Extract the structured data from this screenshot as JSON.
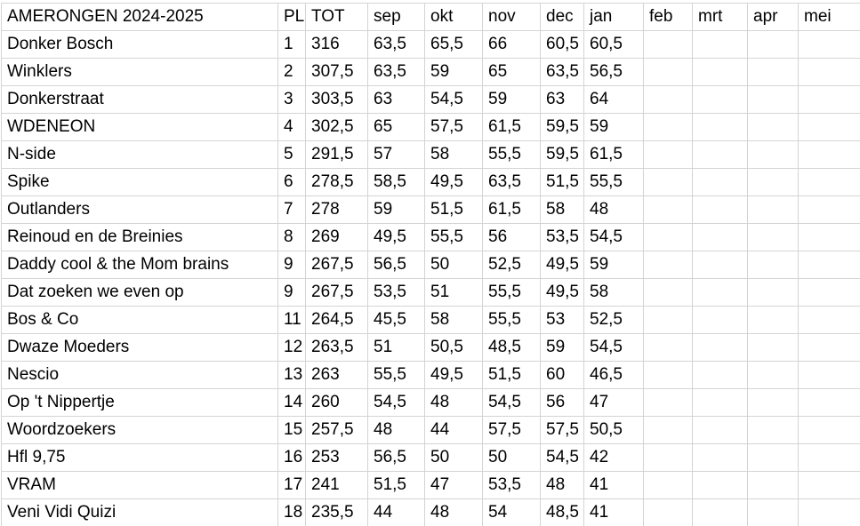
{
  "table": {
    "title": "AMERONGEN  2024-2025",
    "columns": [
      "PL",
      "TOT",
      "sep",
      "okt",
      "nov",
      "dec",
      "jan",
      "feb",
      "mrt",
      "apr",
      "mei"
    ],
    "month_keys": [
      "sep",
      "okt",
      "nov",
      "dec",
      "jan",
      "feb",
      "mrt",
      "apr",
      "mei"
    ],
    "rows": [
      {
        "team": "Donker Bosch",
        "pl": "1",
        "tot": "316",
        "scores": [
          "63,5",
          "65,5",
          "66",
          "60,5",
          "60,5",
          "",
          "",
          "",
          ""
        ]
      },
      {
        "team": "Winklers",
        "pl": "2",
        "tot": "307,5",
        "scores": [
          "63,5",
          "59",
          "65",
          "63,5",
          "56,5",
          "",
          "",
          "",
          ""
        ]
      },
      {
        "team": "Donkerstraat",
        "pl": "3",
        "tot": "303,5",
        "scores": [
          "63",
          "54,5",
          "59",
          "63",
          "64",
          "",
          "",
          "",
          ""
        ]
      },
      {
        "team": "WDENEON",
        "pl": "4",
        "tot": "302,5",
        "scores": [
          "65",
          "57,5",
          "61,5",
          "59,5",
          "59",
          "",
          "",
          "",
          ""
        ]
      },
      {
        "team": "N-side",
        "pl": "5",
        "tot": "291,5",
        "scores": [
          "57",
          "58",
          "55,5",
          "59,5",
          "61,5",
          "",
          "",
          "",
          ""
        ]
      },
      {
        "team": "Spike",
        "pl": "6",
        "tot": "278,5",
        "scores": [
          "58,5",
          "49,5",
          "63,5",
          "51,5",
          "55,5",
          "",
          "",
          "",
          ""
        ]
      },
      {
        "team": "Outlanders",
        "pl": "7",
        "tot": "278",
        "scores": [
          "59",
          "51,5",
          "61,5",
          "58",
          "48",
          "",
          "",
          "",
          ""
        ]
      },
      {
        "team": "Reinoud en de Breinies",
        "pl": "8",
        "tot": "269",
        "scores": [
          "49,5",
          "55,5",
          "56",
          "53,5",
          "54,5",
          "",
          "",
          "",
          ""
        ]
      },
      {
        "team": "Daddy cool & the Mom brains",
        "pl": "9",
        "tot": "267,5",
        "scores": [
          "56,5",
          "50",
          "52,5",
          "49,5",
          "59",
          "",
          "",
          "",
          ""
        ]
      },
      {
        "team": "Dat zoeken we even op",
        "pl": "9",
        "tot": "267,5",
        "scores": [
          "53,5",
          "51",
          "55,5",
          "49,5",
          "58",
          "",
          "",
          "",
          ""
        ]
      },
      {
        "team": "Bos & Co",
        "pl": "11",
        "tot": "264,5",
        "scores": [
          "45,5",
          "58",
          "55,5",
          "53",
          "52,5",
          "",
          "",
          "",
          ""
        ]
      },
      {
        "team": "Dwaze Moeders",
        "pl": "12",
        "tot": "263,5",
        "scores": [
          "51",
          "50,5",
          "48,5",
          "59",
          "54,5",
          "",
          "",
          "",
          ""
        ]
      },
      {
        "team": "Nescio",
        "pl": "13",
        "tot": "263",
        "scores": [
          "55,5",
          "49,5",
          "51,5",
          "60",
          "46,5",
          "",
          "",
          "",
          ""
        ]
      },
      {
        "team": "Op 't Nippertje",
        "pl": "14",
        "tot": "260",
        "scores": [
          "54,5",
          "48",
          "54,5",
          "56",
          "47",
          "",
          "",
          "",
          ""
        ]
      },
      {
        "team": "Woordzoekers",
        "pl": "15",
        "tot": "257,5",
        "scores": [
          "48",
          "44",
          "57,5",
          "57,5",
          "50,5",
          "",
          "",
          "",
          ""
        ]
      },
      {
        "team": "Hfl 9,75",
        "pl": "16",
        "tot": "253",
        "scores": [
          "56,5",
          "50",
          "50",
          "54,5",
          "42",
          "",
          "",
          "",
          ""
        ]
      },
      {
        "team": "VRAM",
        "pl": "17",
        "tot": "241",
        "scores": [
          "51,5",
          "47",
          "53,5",
          "48",
          "41",
          "",
          "",
          "",
          ""
        ]
      },
      {
        "team": "Veni Vidi Quizi",
        "pl": "18",
        "tot": "235,5",
        "scores": [
          "44",
          "48",
          "54",
          "48,5",
          "41",
          "",
          "",
          "",
          ""
        ]
      }
    ],
    "colors": {
      "gridline": "#d4d4d4",
      "text": "#000000",
      "background": "#ffffff"
    }
  }
}
